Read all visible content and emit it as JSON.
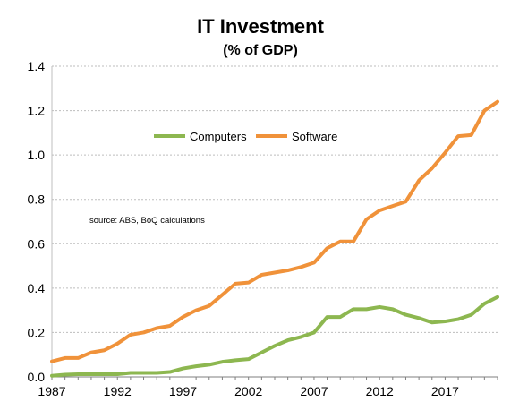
{
  "chart_data": {
    "type": "line",
    "title": "IT Investment",
    "subtitle": "(% of GDP)",
    "xlabel": "",
    "ylabel": "",
    "xlim": [
      1987,
      2021
    ],
    "ylim": [
      0,
      1.4
    ],
    "x_ticks": [
      1987,
      1992,
      1997,
      2002,
      2007,
      2012,
      2017
    ],
    "y_ticks": [
      0.0,
      0.2,
      0.4,
      0.6,
      0.8,
      1.0,
      1.2,
      1.4
    ],
    "y_tick_labels": [
      "0.0",
      "0.2",
      "0.4",
      "0.6",
      "0.8",
      "1.0",
      "1.2",
      "1.4"
    ],
    "grid": {
      "horizontal": true,
      "vertical": false,
      "style": "dotted"
    },
    "legend": {
      "position": "center-upper",
      "entries": [
        "Computers",
        "Software"
      ]
    },
    "annotation": "source:  ABS, BoQ calculations",
    "x": [
      1987,
      1988,
      1989,
      1990,
      1991,
      1992,
      1993,
      1994,
      1995,
      1996,
      1997,
      1998,
      1999,
      2000,
      2001,
      2002,
      2003,
      2004,
      2005,
      2006,
      2007,
      2008,
      2009,
      2010,
      2011,
      2012,
      2013,
      2014,
      2015,
      2016,
      2017,
      2018,
      2019,
      2020,
      2021
    ],
    "series": [
      {
        "name": "Computers",
        "color": "#8DB750",
        "values": [
          0.005,
          0.01,
          0.012,
          0.012,
          0.012,
          0.012,
          0.018,
          0.018,
          0.018,
          0.022,
          0.038,
          0.048,
          0.055,
          0.068,
          0.075,
          0.08,
          0.11,
          0.14,
          0.165,
          0.18,
          0.2,
          0.27,
          0.27,
          0.305,
          0.305,
          0.315,
          0.305,
          0.28,
          0.265,
          0.245,
          0.25,
          0.26,
          0.28,
          0.33,
          0.36
        ]
      },
      {
        "name": "Software",
        "color": "#F0923A",
        "values": [
          0.07,
          0.085,
          0.085,
          0.11,
          0.12,
          0.15,
          0.19,
          0.2,
          0.22,
          0.23,
          0.27,
          0.3,
          0.32,
          0.37,
          0.42,
          0.425,
          0.46,
          0.47,
          0.48,
          0.495,
          0.515,
          0.58,
          0.61,
          0.61,
          0.71,
          0.75,
          0.77,
          0.79,
          0.885,
          0.94,
          1.01,
          1.085,
          1.09,
          1.2,
          1.24
        ]
      }
    ]
  }
}
